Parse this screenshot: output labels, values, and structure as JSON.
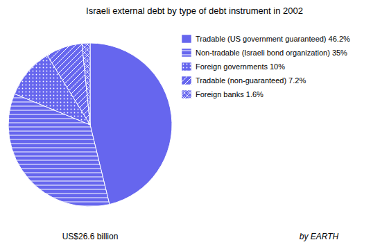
{
  "chart_data": {
    "type": "pie",
    "title": "Israeli external debt by type of debt instrument in 2002",
    "subtitle": "US$26.6 billion",
    "annotations": [
      "by EARTH"
    ],
    "categories": [
      "Tradable (US government guaranteed)  46.2%",
      "Non-tradable (Israeli bond organization)  35%",
      "Foreign governments  10%",
      "Tradable (non-guaranteed)  7.2%",
      "Foreign banks  1.6%"
    ],
    "values": [
      46.2,
      35.0,
      10.0,
      7.2,
      1.6
    ],
    "color": "#6666ee",
    "legend": "right"
  }
}
